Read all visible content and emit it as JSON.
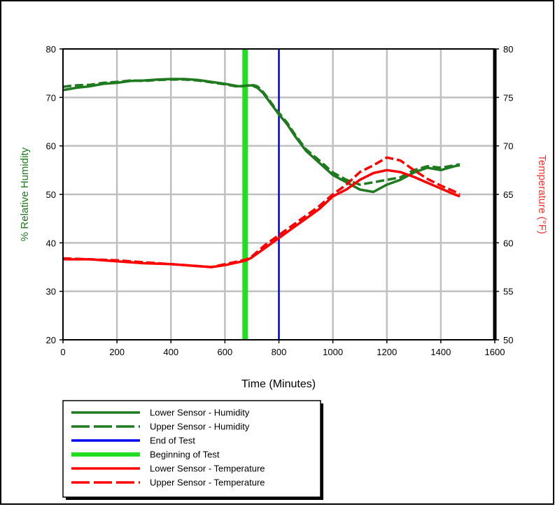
{
  "chart_data": {
    "type": "line",
    "xlabel": "Time (Minutes)",
    "ylabel_left": "% Relative Humidity",
    "ylabel_right": "Temperature (°F)",
    "xlim": [
      0,
      1600
    ],
    "ylim_left": [
      20,
      80
    ],
    "ylim_right": [
      50,
      80
    ],
    "x_ticks": [
      "0",
      "200",
      "400",
      "600",
      "800",
      "1000",
      "1200",
      "1400",
      "1600"
    ],
    "y_left_ticks": [
      "20",
      "30",
      "40",
      "50",
      "60",
      "70",
      "80"
    ],
    "y_right_ticks": [
      "50",
      "55",
      "60",
      "65",
      "70",
      "75",
      "80"
    ],
    "grid": true,
    "legend_position": "bottom-left",
    "colors": {
      "humidity": "#1f7a1f",
      "end_of_test": "#0000ee",
      "beginning_of_test": "#22dd22",
      "temperature": "#ff0000"
    },
    "vlines": [
      {
        "name": "End of Test",
        "x": 800
      },
      {
        "name": "Beginning of Test",
        "x": 675
      }
    ],
    "series": [
      {
        "name": "Lower Sensor - Humidity",
        "axis": "left",
        "style": "solid",
        "x": [
          0,
          50,
          100,
          150,
          200,
          250,
          300,
          350,
          400,
          450,
          500,
          550,
          600,
          650,
          700,
          720,
          740,
          760,
          780,
          800,
          830,
          860,
          900,
          950,
          1000,
          1050,
          1100,
          1150,
          1200,
          1250,
          1300,
          1350,
          1400,
          1450,
          1470
        ],
        "y": [
          71.5,
          72,
          72.3,
          72.8,
          73,
          73.4,
          73.5,
          73.7,
          73.8,
          73.8,
          73.6,
          73.2,
          72.8,
          72.3,
          72.5,
          72,
          71,
          69.5,
          68,
          66.5,
          64.5,
          62,
          59,
          56.5,
          54,
          52.5,
          51,
          50.5,
          52,
          53,
          54.5,
          55.5,
          55,
          55.8,
          56
        ]
      },
      {
        "name": "Upper Sensor - Humidity",
        "axis": "left",
        "style": "dashed",
        "x": [
          0,
          50,
          100,
          150,
          200,
          250,
          300,
          350,
          400,
          450,
          500,
          550,
          600,
          650,
          700,
          720,
          740,
          760,
          780,
          800,
          830,
          860,
          900,
          950,
          1000,
          1050,
          1100,
          1150,
          1200,
          1250,
          1300,
          1350,
          1400,
          1450,
          1470
        ],
        "y": [
          72.2,
          72.5,
          72.6,
          73,
          73.2,
          73.5,
          73.4,
          73.6,
          73.7,
          73.7,
          73.5,
          73.1,
          72.7,
          72.2,
          72.6,
          72.3,
          71.2,
          69.8,
          68.2,
          66.8,
          64.8,
          62.3,
          59.3,
          57,
          54.5,
          53,
          52,
          52.5,
          53,
          53.5,
          55,
          55.8,
          55.5,
          56,
          56.2
        ]
      },
      {
        "name": "Lower Sensor - Temperature",
        "axis": "right",
        "style": "solid",
        "x": [
          0,
          100,
          200,
          300,
          400,
          500,
          550,
          600,
          650,
          680,
          700,
          750,
          800,
          850,
          900,
          950,
          1000,
          1050,
          1100,
          1150,
          1200,
          1250,
          1300,
          1350,
          1400,
          1450,
          1470
        ],
        "y": [
          58.3,
          58.3,
          58.1,
          57.9,
          57.8,
          57.6,
          57.5,
          57.7,
          58,
          58.2,
          58.5,
          59.5,
          60.5,
          61.5,
          62.5,
          63.5,
          64.8,
          65.5,
          66.5,
          67.2,
          67.5,
          67.3,
          66.8,
          66.2,
          65.6,
          65,
          64.8
        ]
      },
      {
        "name": "Upper Sensor - Temperature",
        "axis": "right",
        "style": "dashed",
        "x": [
          0,
          100,
          200,
          300,
          400,
          500,
          550,
          600,
          650,
          680,
          700,
          750,
          800,
          850,
          900,
          950,
          1000,
          1050,
          1100,
          1150,
          1200,
          1250,
          1300,
          1350,
          1400,
          1450,
          1470
        ],
        "y": [
          58.4,
          58.3,
          58.2,
          58,
          57.8,
          57.6,
          57.5,
          57.8,
          58.1,
          58.3,
          58.6,
          59.8,
          60.8,
          61.8,
          62.8,
          63.8,
          65,
          66,
          67.3,
          68,
          68.8,
          68.5,
          67.5,
          66.6,
          65.9,
          65.3,
          65
        ]
      }
    ]
  },
  "legend": {
    "items": [
      {
        "label": "Lower Sensor - Humidity",
        "style": "solid",
        "color": "#1f7a1f"
      },
      {
        "label": "Upper Sensor - Humidity",
        "style": "dashed",
        "color": "#1f7a1f"
      },
      {
        "label": "End of Test",
        "style": "solid",
        "color": "#0000ee"
      },
      {
        "label": "Beginning of Test",
        "style": "thick",
        "color": "#22dd22"
      },
      {
        "label": "Lower Sensor - Temperature",
        "style": "solid",
        "color": "#ff0000"
      },
      {
        "label": "Upper Sensor - Temperature",
        "style": "dashed",
        "color": "#ff0000"
      }
    ]
  }
}
